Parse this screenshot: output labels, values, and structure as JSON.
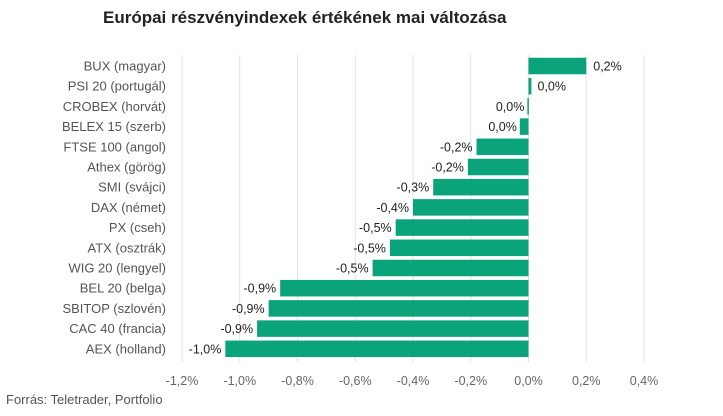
{
  "chart_data": {
    "type": "bar",
    "orientation": "horizontal",
    "title": "Európai részvényindexek értékének mai változása",
    "source": "Forrás: Teletrader, Portfolio",
    "bar_color": "#0aa37a",
    "grid": true,
    "xlim": [
      -1.2,
      0.4
    ],
    "ticks": [
      -1.2,
      -1.0,
      -0.8,
      -0.6,
      -0.4,
      -0.2,
      0.0,
      0.2,
      0.4
    ],
    "tick_labels": [
      "-1,2%",
      "-1,0%",
      "-0,8%",
      "-0,6%",
      "-0,4%",
      "-0,2%",
      "0,0%",
      "0,2%",
      "0,4%"
    ],
    "categories": [
      "BUX (magyar)",
      "PSI 20 (portugál)",
      "CROBEX (horvát)",
      "BELEX 15 (szerb)",
      "FTSE 100 (angol)",
      "Athex (görög)",
      "SMI (svájci)",
      "DAX (német)",
      "PX (cseh)",
      "ATX (osztrák)",
      "WIG 20 (lengyel)",
      "BEL 20 (belga)",
      "SBITOP (szlovén)",
      "CAC 40 (francia)",
      "AEX (holland)"
    ],
    "values": [
      0.2,
      0.01,
      -0.004,
      -0.03,
      -0.18,
      -0.21,
      -0.33,
      -0.4,
      -0.46,
      -0.48,
      -0.54,
      -0.86,
      -0.9,
      -0.94,
      -1.05
    ],
    "value_labels": [
      "0,2%",
      "0,0%",
      "0,0%",
      "0,0%",
      "-0,2%",
      "-0,2%",
      "-0,3%",
      "-0,4%",
      "-0,5%",
      "-0,5%",
      "-0,5%",
      "-0,9%",
      "-0,9%",
      "-0,9%",
      "-1,0%"
    ]
  }
}
